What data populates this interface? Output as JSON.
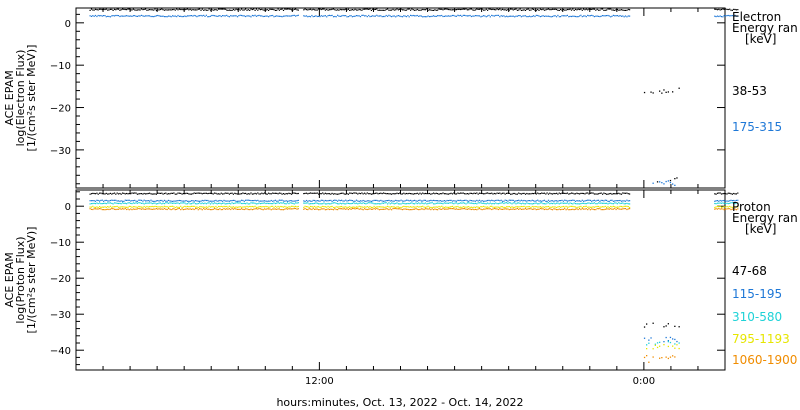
{
  "xlabel": "hours:minutes, Oct. 13, 2022 - Oct. 14, 2022",
  "x_tick_labels": [
    "12:00",
    "0:00"
  ],
  "colors": {
    "black": "#000000",
    "blue": "#1e78d7",
    "cyan": "#1ed2d7",
    "yellow": "#e6e600",
    "orange": "#f08c00"
  },
  "chart_data": [
    {
      "type": "scatter",
      "ylabel": [
        "ACE EPAM",
        "log(Electron Flux)",
        "[1/(cm²s ster MeV)]"
      ],
      "ylim": [
        -39,
        3.5
      ],
      "y_ticks": [
        0,
        -10,
        -20,
        -30
      ],
      "x_range_hours": [
        3,
        27
      ],
      "legend": {
        "title": [
          "Electron",
          "Energy ran",
          "[keV]"
        ],
        "entries": [
          "38-53",
          "175-315"
        ]
      },
      "gaps_hours": [
        [
          11.25,
          11.4
        ]
      ],
      "series": [
        {
          "name": "38-53",
          "color": "black",
          "segments": [
            [
              3.5,
              23.5,
              3.1
            ],
            [
              26.6,
              27.5,
              3.1
            ]
          ],
          "dropout": {
            "x": [
              24,
              25.3
            ],
            "y_main": -16,
            "y_low": -37
          }
        },
        {
          "name": "175-315",
          "color": "blue",
          "segments": [
            [
              3.5,
              23.5,
              1.6
            ],
            [
              26.6,
              27.5,
              1.6
            ]
          ],
          "dropout": {
            "x": [
              24,
              25.3
            ],
            "y_main": -37.5,
            "y_low": -38
          }
        }
      ]
    },
    {
      "type": "scatter",
      "ylabel": [
        "ACE EPAM",
        "log(Proton Flux)",
        "[1/(cm²s ster MeV)]"
      ],
      "ylim": [
        -45.5,
        4.5
      ],
      "y_ticks": [
        0,
        -10,
        -20,
        -30,
        -40
      ],
      "x_range_hours": [
        3,
        27
      ],
      "legend": {
        "title": [
          "Proton",
          "Energy ran",
          "[keV]"
        ],
        "entries": [
          "47-68",
          "115-195",
          "310-580",
          "795-1193",
          "1060-1900"
        ]
      },
      "gaps_hours": [
        [
          11.25,
          11.4
        ]
      ],
      "series": [
        {
          "name": "47-68",
          "color": "black",
          "segments": [
            [
              3.5,
              23.5,
              3.5
            ],
            [
              26.6,
              27.5,
              3.5
            ]
          ],
          "dropout": {
            "x": [
              24,
              25.3
            ],
            "y_main": -33,
            "y_low": -33
          }
        },
        {
          "name": "115-195",
          "color": "blue",
          "segments": [
            [
              3.5,
              23.5,
              1.5
            ],
            [
              26.6,
              27.5,
              1.5
            ]
          ],
          "dropout": {
            "x": [
              24,
              25.3
            ],
            "y_main": -37,
            "y_low": -37
          }
        },
        {
          "name": "310-580",
          "color": "cyan",
          "segments": [
            [
              3.5,
              23.5,
              0.8
            ],
            [
              26.6,
              27.5,
              0.8
            ]
          ],
          "dropout": {
            "x": [
              24,
              25.3
            ],
            "y_main": -38,
            "y_low": -38
          }
        },
        {
          "name": "795-1193",
          "color": "yellow",
          "segments": [
            [
              3.5,
              23.5,
              -0.2
            ],
            [
              26.6,
              27.5,
              -0.2
            ]
          ],
          "dropout": {
            "x": [
              24,
              25.3
            ],
            "y_main": -39,
            "y_low": -40
          }
        },
        {
          "name": "1060-1900",
          "color": "orange",
          "segments": [
            [
              3.5,
              23.5,
              -0.8
            ],
            [
              26.6,
              27.5,
              -0.8
            ]
          ],
          "dropout": {
            "x": [
              24,
              25.3
            ],
            "y_main": -42,
            "y_low": -43
          }
        }
      ]
    }
  ]
}
